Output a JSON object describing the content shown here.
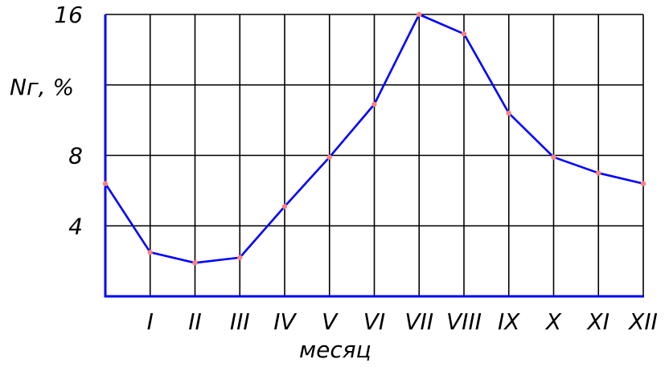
{
  "chart_data": {
    "type": "line",
    "x_tick_labels": [
      "",
      "I",
      "II",
      "III",
      "IV",
      "V",
      "VI",
      "VII",
      "VIII",
      "IX",
      "X",
      "XI",
      "XII"
    ],
    "series": [
      {
        "values": [
          6.4,
          2.5,
          1.9,
          2.2,
          5.1,
          7.9,
          10.9,
          16.0,
          14.9,
          10.4,
          7.9,
          7.0,
          6.4
        ]
      }
    ],
    "y_ticks": [
      4,
      8,
      16
    ],
    "y_tick_labels": [
      "4",
      "8",
      "16"
    ],
    "ylim": [
      0,
      16
    ],
    "ylabel": "Nг, %",
    "xlabel": "месяц",
    "grid": true,
    "line_color": "#0000ff",
    "marker_color": "#ff8080",
    "axis_color": "#0000ff",
    "grid_color": "#000000"
  }
}
